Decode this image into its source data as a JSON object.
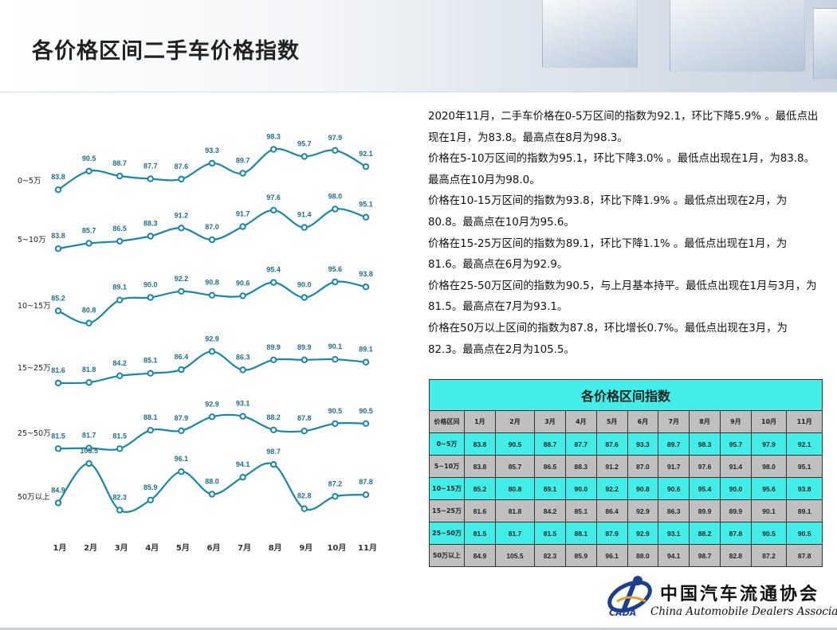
{
  "page": {
    "title": "各价格区间二手车价格指数"
  },
  "chart_data": {
    "type": "line",
    "categories": [
      "1月",
      "2月",
      "3月",
      "4月",
      "5月",
      "6月",
      "7月",
      "8月",
      "9月",
      "10月",
      "11月"
    ],
    "series": [
      {
        "name": "0~5万",
        "values": [
          83.8,
          90.5,
          88.7,
          87.7,
          87.6,
          93.3,
          89.7,
          98.3,
          95.7,
          97.9,
          92.1
        ]
      },
      {
        "name": "5~10万",
        "values": [
          83.8,
          85.7,
          86.5,
          88.3,
          91.2,
          87.0,
          91.7,
          97.6,
          91.4,
          98.0,
          95.1
        ]
      },
      {
        "name": "10~15万",
        "values": [
          85.2,
          80.8,
          89.1,
          90.0,
          92.2,
          90.8,
          90.6,
          95.4,
          90.0,
          95.6,
          93.8
        ]
      },
      {
        "name": "15~25万",
        "values": [
          81.6,
          81.8,
          84.2,
          85.1,
          86.4,
          92.9,
          86.3,
          89.9,
          89.9,
          90.1,
          89.1
        ]
      },
      {
        "name": "25~50万",
        "values": [
          81.5,
          81.7,
          81.5,
          88.1,
          87.9,
          92.9,
          93.1,
          88.2,
          87.8,
          90.5,
          90.5
        ]
      },
      {
        "name": "50万以上",
        "values": [
          84.9,
          105.5,
          82.3,
          85.9,
          96.1,
          88.0,
          94.1,
          98.7,
          82.8,
          87.2,
          87.8
        ]
      }
    ],
    "line_color": "#1a86a8",
    "legend": "none",
    "grid": false,
    "xlabel": "",
    "ylabel": ""
  },
  "summary": [
    "2020年11月，二手车价格在0-5万区间的指数为92.1，环比下降5.9% 。最低点出现在1月，为83.8。最高点在8月为98.3。",
    "价格在5-10万区间的指数为95.1，环比下降3.0% 。最低点出现在1月，为83.8。最高点在10月为98.0。",
    "价格在10-15万区间的指数为93.8，环比下降1.9% 。最低点出现在2月，为80.8。最高点在10月为95.6。",
    "价格在15-25万区间的指数为89.1，环比下降1.1% 。最低点出现在1月，为81.6。最高点在6月为92.9。",
    "价格在25-50万区间的指数为90.5，与上月基本持平。最低点出现在1月与3月，为81.5。最高点在7月为93.1。",
    "价格在50万以上区间的指数为87.8，环比增长0.7%。最低点出现在3月，为82.3。最高点在2月为105.5。"
  ],
  "table": {
    "title": "各价格区间指数",
    "corner_label": "价格区间",
    "months": [
      "1月",
      "2月",
      "3月",
      "4月",
      "5月",
      "6月",
      "7月",
      "8月",
      "9月",
      "10月",
      "11月"
    ],
    "rows": [
      {
        "label": "0~5万",
        "values": [
          "83.8",
          "90.5",
          "88.7",
          "87.7",
          "87.6",
          "93.3",
          "89.7",
          "98.3",
          "95.7",
          "97.9",
          "92.1"
        ]
      },
      {
        "label": "5~10万",
        "values": [
          "83.8",
          "85.7",
          "86.5",
          "88.3",
          "91.2",
          "87.0",
          "91.7",
          "97.6",
          "91.4",
          "98.0",
          "95.1"
        ]
      },
      {
        "label": "10~15万",
        "values": [
          "85.2",
          "80.8",
          "89.1",
          "90.0",
          "92.2",
          "90.8",
          "90.6",
          "95.4",
          "90.0",
          "95.6",
          "93.8"
        ]
      },
      {
        "label": "15~25万",
        "values": [
          "81.6",
          "81.8",
          "84.2",
          "85.1",
          "86.4",
          "92.9",
          "86.3",
          "89.9",
          "89.9",
          "90.1",
          "89.1"
        ]
      },
      {
        "label": "25~50万",
        "values": [
          "81.5",
          "81.7",
          "81.5",
          "88.1",
          "87.9",
          "92.9",
          "93.1",
          "88.2",
          "87.8",
          "90.5",
          "90.5"
        ]
      },
      {
        "label": "50万以上",
        "values": [
          "84.9",
          "105.5",
          "82.3",
          "85.9",
          "96.1",
          "88.0",
          "94.1",
          "98.7",
          "82.8",
          "87.2",
          "87.8"
        ]
      }
    ],
    "colors": {
      "cyan": "#43eee8",
      "gray": "#c0c0c0"
    }
  },
  "logo": {
    "cn": "中国汽车流通协会",
    "en": "China Automobile Dealers Association",
    "abbr": "CADA",
    "icon": "cada-logo-icon"
  }
}
